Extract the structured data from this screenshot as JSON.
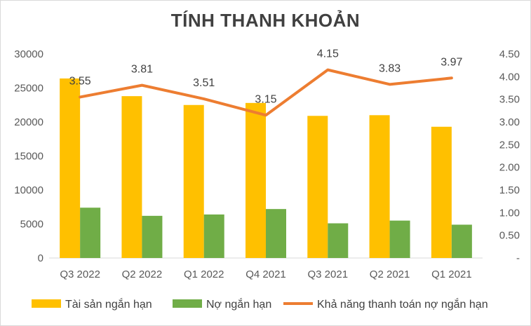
{
  "chart_data": {
    "type": "bar",
    "title": "TÍNH THANH KHOẢN",
    "categories": [
      "Q3 2022",
      "Q2 2022",
      "Q1 2022",
      "Q4 2021",
      "Q3 2021",
      "Q2 2021",
      "Q1 2021"
    ],
    "series": [
      {
        "name": "Tài sản ngắn hạn",
        "kind": "bar",
        "axis": "left",
        "color": "#FFC000",
        "values": [
          26400,
          23800,
          22500,
          22800,
          20900,
          21000,
          19300
        ]
      },
      {
        "name": "Nợ ngắn hạn",
        "kind": "bar",
        "axis": "left",
        "color": "#70AD47",
        "values": [
          7400,
          6200,
          6400,
          7200,
          5100,
          5500,
          4900
        ]
      },
      {
        "name": "Khả năng thanh toán nợ ngắn hạn",
        "kind": "line",
        "axis": "right",
        "color": "#ED7D31",
        "values": [
          3.55,
          3.81,
          3.51,
          3.15,
          4.15,
          3.83,
          3.97
        ],
        "labels": [
          "3.55",
          "3.81",
          "3.51",
          "3.15",
          "4.15",
          "3.83",
          "3.97"
        ]
      }
    ],
    "y_left": {
      "min": 0,
      "max": 30000,
      "ticks": [
        "0",
        "5000",
        "10000",
        "15000",
        "20000",
        "25000",
        "30000"
      ]
    },
    "y_right": {
      "min": 0,
      "max": 4.5,
      "ticks": [
        "-",
        "0.50",
        "1.00",
        "1.50",
        "2.00",
        "2.50",
        "3.00",
        "3.50",
        "4.00",
        "4.50"
      ]
    },
    "grid": false,
    "legend_position": "bottom"
  }
}
